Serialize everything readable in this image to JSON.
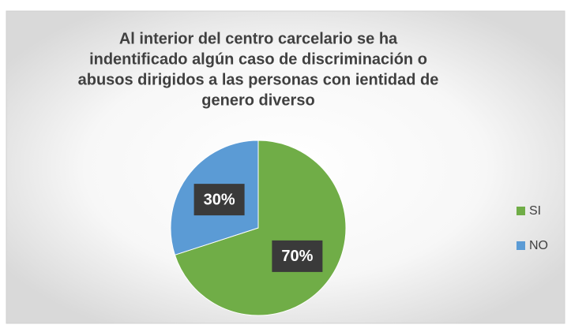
{
  "chart_data": {
    "type": "pie",
    "title": [
      "Al interior del centro carcelario se ha",
      "indentificado algún caso de discriminación o",
      "abusos dirigidos a las personas con ientidad de",
      "genero diverso"
    ],
    "categories": [
      "SI",
      "NO"
    ],
    "values": [
      70,
      30
    ],
    "value_labels": [
      "70%",
      "30%"
    ],
    "colors": [
      "#70ad47",
      "#5b9bd5"
    ],
    "legend": "right"
  }
}
